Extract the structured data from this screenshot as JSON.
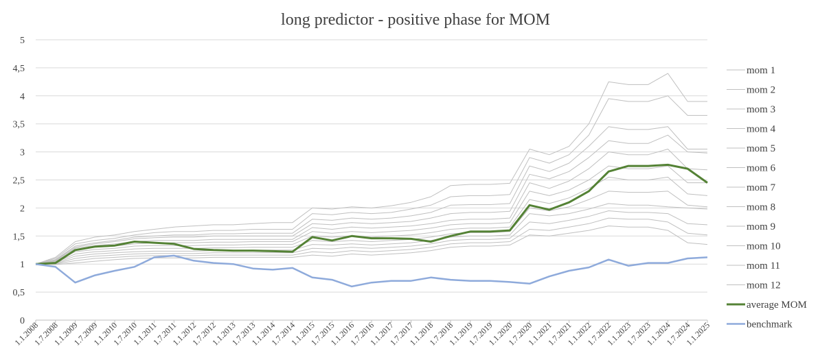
{
  "chart_data": {
    "type": "line",
    "title": "long predictor - positive phase for MOM",
    "xlabel": "",
    "ylabel": "",
    "ylim": [
      0,
      5
    ],
    "y_ticks": [
      "0",
      "0,5",
      "1",
      "1,5",
      "2",
      "2,5",
      "3",
      "3,5",
      "4",
      "4,5",
      "5"
    ],
    "grid": true,
    "legend_position": "right",
    "x": [
      "1.1.2008",
      "1.7.2008",
      "1.1.2009",
      "1.7.2009",
      "1.1.2010",
      "1.7.2010",
      "1.1.2011",
      "1.7.2011",
      "1.1.2012",
      "1.7.2012",
      "1.1.2013",
      "1.7.2013",
      "1.1.2014",
      "1.7.2014",
      "1.1.2015",
      "1.7.2015",
      "1.1.2016",
      "1.7.2016",
      "1.1.2017",
      "1.7.2017",
      "1.1.2018",
      "1.7.2018",
      "1.1.2019",
      "1.7.2019",
      "1.1.2020",
      "1.7.2020",
      "1.1.2021",
      "1.7.2021",
      "1.1.2022",
      "1.7.2022",
      "1.1.2023",
      "1.7.2023",
      "1.1.2024",
      "1.7.2024",
      "1.1.2025"
    ],
    "series": [
      {
        "name": "mom 1",
        "color": "#bfbfbf",
        "width": 1,
        "values": [
          1.0,
          1.12,
          1.4,
          1.48,
          1.52,
          1.58,
          1.62,
          1.66,
          1.68,
          1.7,
          1.7,
          1.72,
          1.74,
          1.74,
          2.0,
          1.98,
          2.02,
          2.0,
          2.04,
          2.1,
          2.2,
          2.4,
          2.42,
          2.42,
          2.44,
          3.05,
          2.95,
          3.1,
          3.5,
          4.25,
          4.2,
          4.2,
          4.4,
          3.9,
          3.9
        ]
      },
      {
        "name": "mom 2",
        "color": "#bfbfbf",
        "width": 1,
        "values": [
          1.0,
          1.1,
          1.36,
          1.42,
          1.46,
          1.52,
          1.56,
          1.58,
          1.58,
          1.6,
          1.6,
          1.62,
          1.62,
          1.62,
          1.9,
          1.88,
          1.92,
          1.9,
          1.92,
          1.98,
          2.05,
          2.2,
          2.22,
          2.22,
          2.24,
          2.9,
          2.8,
          2.95,
          3.3,
          3.95,
          3.9,
          3.9,
          4.0,
          3.65,
          3.65
        ]
      },
      {
        "name": "mom 3",
        "color": "#bfbfbf",
        "width": 1,
        "values": [
          1.0,
          1.08,
          1.32,
          1.38,
          1.42,
          1.48,
          1.5,
          1.52,
          1.52,
          1.54,
          1.54,
          1.55,
          1.55,
          1.55,
          1.8,
          1.78,
          1.82,
          1.8,
          1.82,
          1.86,
          1.92,
          2.05,
          2.06,
          2.06,
          2.08,
          2.75,
          2.65,
          2.8,
          3.1,
          3.45,
          3.4,
          3.4,
          3.45,
          3.05,
          3.05
        ]
      },
      {
        "name": "mom 4",
        "color": "#bfbfbf",
        "width": 1,
        "values": [
          1.0,
          1.07,
          1.3,
          1.36,
          1.4,
          1.45,
          1.47,
          1.48,
          1.48,
          1.5,
          1.5,
          1.5,
          1.5,
          1.5,
          1.72,
          1.7,
          1.74,
          1.72,
          1.74,
          1.76,
          1.82,
          1.9,
          1.92,
          1.92,
          1.94,
          2.6,
          2.52,
          2.65,
          2.9,
          3.2,
          3.15,
          3.15,
          3.3,
          3.0,
          2.98
        ]
      },
      {
        "name": "mom 5",
        "color": "#bfbfbf",
        "width": 1,
        "values": [
          1.0,
          1.06,
          1.28,
          1.33,
          1.36,
          1.4,
          1.42,
          1.42,
          1.42,
          1.44,
          1.44,
          1.44,
          1.44,
          1.44,
          1.65,
          1.62,
          1.66,
          1.64,
          1.66,
          1.68,
          1.72,
          1.78,
          1.8,
          1.8,
          1.82,
          2.45,
          2.35,
          2.48,
          2.7,
          3.0,
          2.95,
          2.95,
          3.05,
          2.7,
          2.68
        ]
      },
      {
        "name": "mom 6",
        "color": "#bfbfbf",
        "width": 1,
        "values": [
          1.0,
          1.05,
          1.25,
          1.3,
          1.32,
          1.36,
          1.38,
          1.38,
          1.38,
          1.39,
          1.39,
          1.4,
          1.4,
          1.4,
          1.58,
          1.55,
          1.58,
          1.56,
          1.58,
          1.6,
          1.64,
          1.7,
          1.72,
          1.72,
          1.74,
          2.3,
          2.22,
          2.32,
          2.5,
          2.75,
          2.7,
          2.7,
          2.75,
          2.45,
          2.45
        ]
      },
      {
        "name": "mom 7",
        "color": "#bfbfbf",
        "width": 1,
        "values": [
          1.0,
          1.04,
          1.22,
          1.26,
          1.28,
          1.32,
          1.33,
          1.33,
          1.33,
          1.34,
          1.34,
          1.35,
          1.35,
          1.35,
          1.5,
          1.48,
          1.5,
          1.48,
          1.5,
          1.52,
          1.56,
          1.62,
          1.64,
          1.64,
          1.66,
          2.15,
          2.08,
          2.18,
          2.35,
          2.55,
          2.5,
          2.5,
          2.55,
          2.25,
          2.22
        ]
      },
      {
        "name": "mom 8",
        "color": "#bfbfbf",
        "width": 1,
        "values": [
          1.0,
          1.03,
          1.18,
          1.22,
          1.24,
          1.27,
          1.28,
          1.28,
          1.28,
          1.29,
          1.29,
          1.3,
          1.3,
          1.3,
          1.42,
          1.4,
          1.42,
          1.4,
          1.42,
          1.44,
          1.48,
          1.54,
          1.56,
          1.56,
          1.58,
          2.0,
          1.95,
          2.02,
          2.15,
          2.3,
          2.28,
          2.28,
          2.3,
          2.05,
          2.02
        ]
      },
      {
        "name": "mom 9",
        "color": "#bfbfbf",
        "width": 1,
        "values": [
          1.0,
          1.02,
          1.14,
          1.18,
          1.2,
          1.22,
          1.23,
          1.23,
          1.23,
          1.24,
          1.24,
          1.25,
          1.25,
          1.25,
          1.35,
          1.34,
          1.36,
          1.34,
          1.36,
          1.38,
          1.42,
          1.48,
          1.5,
          1.5,
          1.52,
          1.9,
          1.86,
          1.9,
          1.98,
          2.08,
          2.05,
          2.05,
          2.02,
          2.0,
          1.98
        ]
      },
      {
        "name": "mom 10",
        "color": "#bfbfbf",
        "width": 1,
        "values": [
          1.0,
          1.01,
          1.1,
          1.14,
          1.16,
          1.18,
          1.19,
          1.19,
          1.19,
          1.2,
          1.2,
          1.2,
          1.2,
          1.2,
          1.28,
          1.27,
          1.3,
          1.28,
          1.3,
          1.32,
          1.36,
          1.42,
          1.44,
          1.44,
          1.46,
          1.75,
          1.72,
          1.78,
          1.85,
          1.95,
          1.92,
          1.92,
          1.9,
          1.72,
          1.7
        ]
      },
      {
        "name": "mom 11",
        "color": "#bfbfbf",
        "width": 1,
        "values": [
          1.0,
          1.0,
          1.06,
          1.1,
          1.12,
          1.14,
          1.15,
          1.15,
          1.15,
          1.16,
          1.16,
          1.16,
          1.16,
          1.16,
          1.22,
          1.2,
          1.24,
          1.22,
          1.24,
          1.26,
          1.3,
          1.36,
          1.38,
          1.38,
          1.4,
          1.62,
          1.6,
          1.66,
          1.72,
          1.82,
          1.8,
          1.8,
          1.75,
          1.55,
          1.52
        ]
      },
      {
        "name": "mom 12",
        "color": "#bfbfbf",
        "width": 1,
        "values": [
          1.0,
          0.99,
          1.02,
          1.05,
          1.08,
          1.1,
          1.11,
          1.11,
          1.11,
          1.12,
          1.12,
          1.12,
          1.12,
          1.12,
          1.16,
          1.14,
          1.18,
          1.16,
          1.18,
          1.2,
          1.24,
          1.3,
          1.32,
          1.32,
          1.34,
          1.52,
          1.5,
          1.55,
          1.6,
          1.68,
          1.66,
          1.66,
          1.6,
          1.38,
          1.35
        ]
      },
      {
        "name": "average MOM",
        "color": "#548235",
        "width": 3,
        "values": [
          1.0,
          1.02,
          1.25,
          1.31,
          1.33,
          1.4,
          1.38,
          1.36,
          1.27,
          1.25,
          1.24,
          1.24,
          1.23,
          1.22,
          1.48,
          1.42,
          1.5,
          1.46,
          1.46,
          1.45,
          1.4,
          1.5,
          1.58,
          1.58,
          1.6,
          2.05,
          1.97,
          2.1,
          2.3,
          2.65,
          2.75,
          2.75,
          2.77,
          2.7,
          2.45
        ]
      },
      {
        "name": "benchmark",
        "color": "#8eaadb",
        "width": 2.5,
        "values": [
          1.0,
          0.95,
          0.67,
          0.8,
          0.88,
          0.95,
          1.12,
          1.15,
          1.06,
          1.02,
          1.0,
          0.92,
          0.9,
          0.93,
          0.76,
          0.72,
          0.6,
          0.67,
          0.7,
          0.7,
          0.76,
          0.72,
          0.7,
          0.7,
          0.68,
          0.65,
          0.78,
          0.88,
          0.94,
          1.08,
          0.97,
          1.02,
          1.02,
          1.1,
          1.12
        ]
      }
    ]
  }
}
